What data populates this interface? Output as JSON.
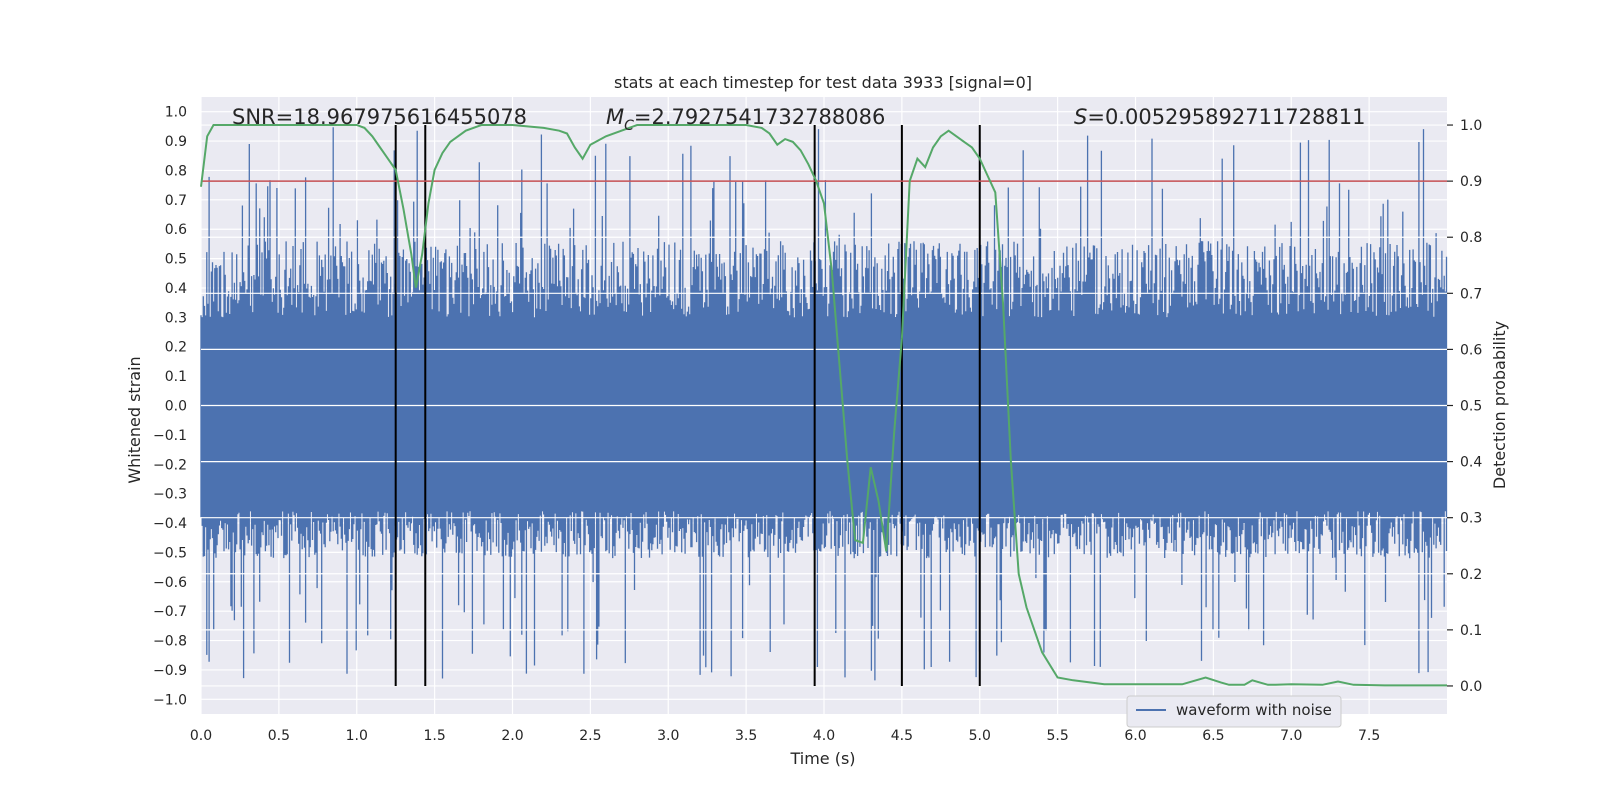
{
  "chart_data": {
    "type": "line",
    "title": "stats at each timestep for test data 3933 [signal=0]",
    "xlabel": "Time (s)",
    "ylabel_left": "Whitened strain",
    "ylabel_right": "Detection probability",
    "xlim": [
      0.0,
      8.0
    ],
    "ylim_left": [
      -1.05,
      1.05
    ],
    "ylim_right": [
      -0.05,
      1.05
    ],
    "xticks": [
      "0.0",
      "0.5",
      "1.0",
      "1.5",
      "2.0",
      "2.5",
      "3.0",
      "3.5",
      "4.0",
      "4.5",
      "5.0",
      "5.5",
      "6.0",
      "6.5",
      "7.0",
      "7.5"
    ],
    "yticks_left": [
      "1.0",
      "0.9",
      "0.8",
      "0.7",
      "0.6",
      "0.5",
      "0.4",
      "0.3",
      "0.2",
      "0.1",
      "0.0",
      "−0.1",
      "−0.2",
      "−0.3",
      "−0.4",
      "−0.5",
      "−0.6",
      "−0.7",
      "−0.8",
      "−0.9",
      "−1.0"
    ],
    "yticks_right": [
      "1.0",
      "0.9",
      "0.8",
      "0.7",
      "0.6",
      "0.5",
      "0.4",
      "0.3",
      "0.2",
      "0.1",
      "0.0"
    ],
    "annotations": {
      "snr": "SNR=18.967975616455078",
      "mc_symbol": "M",
      "mc_sub": "C",
      "mc_value": "=2.7927541732788086",
      "s_symbol": "S",
      "s_value": "=0.005295892711728811"
    },
    "threshold_line": {
      "y": 0.9,
      "axis": "right",
      "color": "#c44e52"
    },
    "vertical_lines": [
      1.25,
      1.44,
      3.94,
      4.5,
      5.0
    ],
    "series": [
      {
        "name": "waveform with noise",
        "axis": "left",
        "color": "#4c72b0",
        "description": "noise-like whitened strain, dense band about [-0.5, 0.55] with spikes to about ±0.95"
      },
      {
        "axis": "right",
        "color": "#55a868",
        "x": [
          0.0,
          0.04,
          0.08,
          0.13,
          0.3,
          0.5,
          0.8,
          1.0,
          1.05,
          1.1,
          1.15,
          1.2,
          1.25,
          1.3,
          1.35,
          1.38,
          1.42,
          1.46,
          1.5,
          1.55,
          1.6,
          1.7,
          1.8,
          2.0,
          2.2,
          2.3,
          2.35,
          2.4,
          2.45,
          2.5,
          2.6,
          2.8,
          3.0,
          3.3,
          3.5,
          3.6,
          3.65,
          3.7,
          3.75,
          3.8,
          3.85,
          3.9,
          3.95,
          4.0,
          4.05,
          4.1,
          4.15,
          4.2,
          4.25,
          4.3,
          4.35,
          4.4,
          4.45,
          4.5,
          4.55,
          4.6,
          4.65,
          4.7,
          4.75,
          4.8,
          4.85,
          4.9,
          4.95,
          5.0,
          5.05,
          5.1,
          5.15,
          5.2,
          5.25,
          5.3,
          5.35,
          5.4,
          5.5,
          5.6,
          5.8,
          6.0,
          6.3,
          6.45,
          6.55,
          6.6,
          6.7,
          6.75,
          6.8,
          6.85,
          6.9,
          7.0,
          7.2,
          7.3,
          7.4,
          7.6,
          8.0
        ],
        "values": [
          0.89,
          0.98,
          1.0,
          1.0,
          1.0,
          1.0,
          1.0,
          1.0,
          0.995,
          0.98,
          0.96,
          0.94,
          0.92,
          0.85,
          0.77,
          0.71,
          0.77,
          0.86,
          0.92,
          0.95,
          0.97,
          0.99,
          1.0,
          1.0,
          0.995,
          0.99,
          0.985,
          0.96,
          0.94,
          0.965,
          0.98,
          1.0,
          1.0,
          1.0,
          1.0,
          0.995,
          0.985,
          0.965,
          0.975,
          0.97,
          0.955,
          0.93,
          0.9,
          0.86,
          0.74,
          0.57,
          0.4,
          0.26,
          0.255,
          0.39,
          0.33,
          0.24,
          0.45,
          0.62,
          0.9,
          0.94,
          0.925,
          0.96,
          0.98,
          0.99,
          0.98,
          0.97,
          0.96,
          0.94,
          0.91,
          0.88,
          0.68,
          0.4,
          0.2,
          0.14,
          0.1,
          0.06,
          0.015,
          0.01,
          0.003,
          0.003,
          0.003,
          0.015,
          0.006,
          0.002,
          0.002,
          0.01,
          0.006,
          0.002,
          0.002,
          0.003,
          0.002,
          0.008,
          0.002,
          0.001,
          0.001
        ]
      }
    ],
    "legend": {
      "placement": "lower-right",
      "entries": [
        "waveform with noise"
      ]
    },
    "grid": true
  }
}
